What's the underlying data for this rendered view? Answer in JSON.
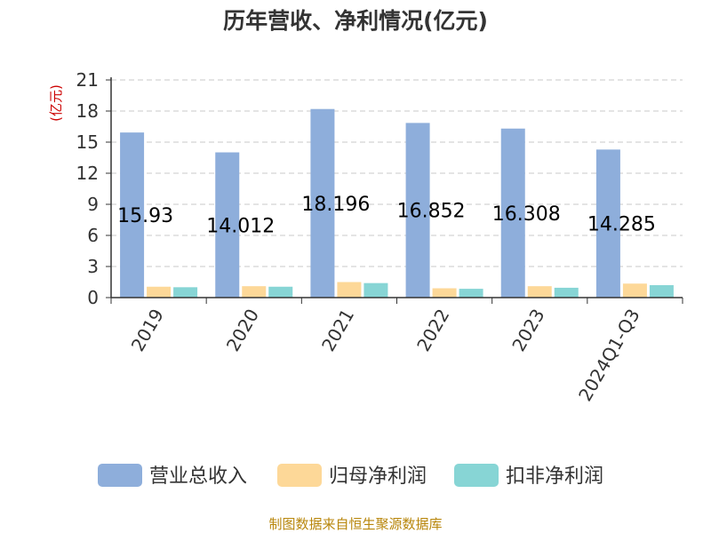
{
  "chart_data": {
    "type": "bar",
    "title": "历年营收、净利情况(亿元)",
    "ylabel": "(亿元)",
    "categories": [
      "2019",
      "2020",
      "2021",
      "2022",
      "2023",
      "2024Q1-Q3"
    ],
    "series": [
      {
        "name": "营业总收入",
        "color": "#8eaedb",
        "values": [
          15.93,
          14.012,
          18.196,
          16.852,
          16.308,
          14.285
        ]
      },
      {
        "name": "归母净利润",
        "color": "#fdd898",
        "values": [
          1.05,
          1.1,
          1.5,
          0.9,
          1.1,
          1.35
        ]
      },
      {
        "name": "扣非净利润",
        "color": "#87d5d5",
        "values": [
          1.0,
          1.05,
          1.4,
          0.85,
          0.95,
          1.2
        ]
      }
    ],
    "data_labels": [
      "15.93",
      "14.012",
      "18.196",
      "16.852",
      "16.308",
      "14.285"
    ],
    "ylim": [
      0,
      21
    ],
    "yticks": [
      0,
      3,
      6,
      9,
      12,
      15,
      18,
      21
    ],
    "grid": true,
    "legend": "bottom"
  },
  "source": "制图数据来自恒生聚源数据库"
}
